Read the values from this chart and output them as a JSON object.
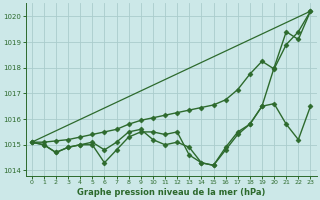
{
  "title": "Graphe pression niveau de la mer (hPa)",
  "background_color": "#cce8e8",
  "grid_color": "#aacccc",
  "line_color": "#2d6a2d",
  "xlim": [
    -0.5,
    23.5
  ],
  "ylim": [
    1013.8,
    1020.5
  ],
  "xticks": [
    0,
    1,
    2,
    3,
    4,
    5,
    6,
    7,
    8,
    9,
    10,
    11,
    12,
    13,
    14,
    15,
    16,
    17,
    18,
    19,
    20,
    21,
    22,
    23
  ],
  "yticks": [
    1014,
    1015,
    1016,
    1017,
    1018,
    1019,
    1020
  ],
  "series": [
    {
      "x": [
        0,
        1,
        2,
        3,
        4,
        5,
        6,
        7,
        8,
        9,
        10,
        11,
        12,
        13,
        14,
        15,
        16,
        17,
        18,
        19,
        20,
        21,
        22,
        23
      ],
      "y": [
        1015.1,
        1015.0,
        1014.7,
        1014.9,
        1015.0,
        1015.0,
        1014.3,
        1014.8,
        1015.3,
        1015.5,
        1015.5,
        1015.4,
        1015.5,
        1014.6,
        1014.3,
        1014.2,
        1014.9,
        1015.5,
        1015.8,
        1016.5,
        1018.0,
        1019.4,
        1019.1,
        1020.2
      ],
      "marker": "D",
      "markersize": 2.5,
      "linewidth": 1.0,
      "with_marker": true
    },
    {
      "x": [
        0,
        1,
        2,
        3,
        4,
        5,
        6,
        7,
        8,
        9,
        10,
        11,
        12,
        13,
        14,
        15,
        16,
        17,
        18,
        19,
        20,
        21,
        22,
        23
      ],
      "y": [
        1015.1,
        1015.0,
        1014.7,
        1014.9,
        1015.0,
        1015.1,
        1014.8,
        1015.1,
        1015.5,
        1015.6,
        1015.2,
        1015.0,
        1015.1,
        1014.9,
        1014.3,
        1014.2,
        1014.8,
        1015.4,
        1015.8,
        1016.5,
        1016.6,
        1015.8,
        1015.2,
        1016.5
      ],
      "marker": "D",
      "markersize": 2.5,
      "linewidth": 1.0,
      "with_marker": true
    },
    {
      "x": [
        0,
        1,
        2,
        3,
        4,
        5,
        6,
        7,
        8,
        9,
        10,
        11,
        12,
        13,
        14,
        15,
        16,
        17,
        18,
        19,
        20,
        21,
        22,
        23
      ],
      "y": [
        1015.1,
        1015.1,
        1015.15,
        1015.2,
        1015.3,
        1015.4,
        1015.5,
        1015.6,
        1015.8,
        1015.95,
        1016.05,
        1016.15,
        1016.25,
        1016.35,
        1016.45,
        1016.55,
        1016.75,
        1017.15,
        1017.75,
        1018.25,
        1017.95,
        1018.9,
        1019.4,
        1020.2
      ],
      "marker": "D",
      "markersize": 2.5,
      "linewidth": 1.0,
      "with_marker": true
    },
    {
      "x": [
        0,
        23
      ],
      "y": [
        1015.1,
        1020.2
      ],
      "marker": null,
      "markersize": 0,
      "linewidth": 0.9,
      "with_marker": false
    }
  ]
}
